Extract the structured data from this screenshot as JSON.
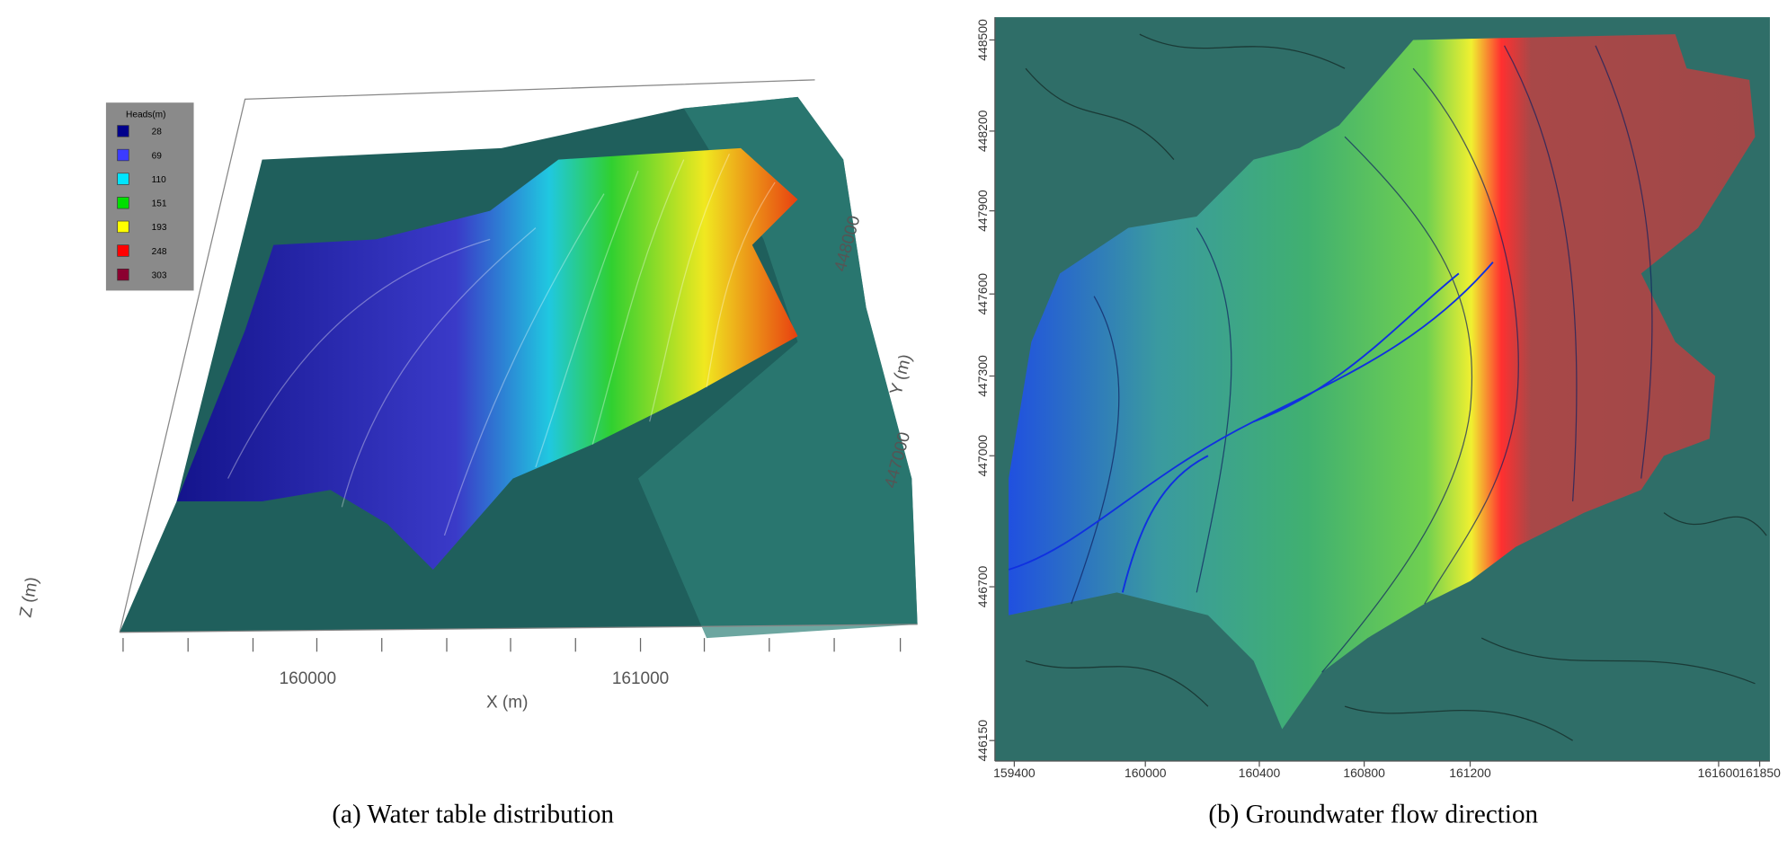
{
  "panel_a": {
    "caption": "(a) Water table distribution",
    "legend": {
      "title": "Heads(m)",
      "items": [
        {
          "label": "28",
          "color": "#00008b"
        },
        {
          "label": "69",
          "color": "#3b3bff"
        },
        {
          "label": "110",
          "color": "#00e5ff"
        },
        {
          "label": "151",
          "color": "#00e000"
        },
        {
          "label": "193",
          "color": "#ffff00"
        },
        {
          "label": "248",
          "color": "#ff0000"
        },
        {
          "label": "303",
          "color": "#8b0030"
        }
      ]
    },
    "x_axis": {
      "label": "X (m)",
      "ticks": [
        "160000",
        "161000"
      ]
    },
    "y_axis": {
      "label": "Y (m)",
      "ticks": [
        "447000",
        "448000"
      ]
    },
    "z_axis": {
      "label": "Z (m)"
    }
  },
  "panel_b": {
    "caption": "(b) Groundwater flow direction",
    "y_ticks": [
      "448500",
      "448200",
      "447900",
      "447600",
      "447300",
      "447000",
      "446700",
      "446150"
    ],
    "x_ticks": [
      "159400",
      "160000",
      "160400",
      "160800",
      "161200",
      "161600",
      "161850"
    ]
  }
}
